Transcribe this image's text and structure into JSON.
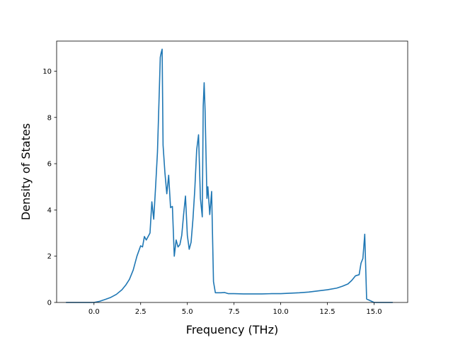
{
  "chart_data": {
    "type": "line",
    "xlabel": "Frequency (THz)",
    "ylabel": "Density of States",
    "xlim": [
      -2.0,
      16.8
    ],
    "ylim": [
      0,
      11.3
    ],
    "xticks": [
      {
        "value": 0.0,
        "label": "0.0"
      },
      {
        "value": 2.5,
        "label": "2.5"
      },
      {
        "value": 5.0,
        "label": "5.0"
      },
      {
        "value": 7.5,
        "label": "7.5"
      },
      {
        "value": 10.0,
        "label": "10.0"
      },
      {
        "value": 12.5,
        "label": "12.5"
      },
      {
        "value": 15.0,
        "label": "15.0"
      }
    ],
    "yticks": [
      {
        "value": 0,
        "label": "0"
      },
      {
        "value": 2,
        "label": "2"
      },
      {
        "value": 4,
        "label": "4"
      },
      {
        "value": 6,
        "label": "6"
      },
      {
        "value": 8,
        "label": "8"
      },
      {
        "value": 10,
        "label": "10"
      }
    ],
    "grid": false,
    "series": [
      {
        "color": "#1f77b4",
        "x": [
          -1.5,
          -1.0,
          -0.5,
          0.0,
          0.3,
          0.6,
          0.9,
          1.2,
          1.5,
          1.7,
          1.9,
          2.1,
          2.3,
          2.5,
          2.6,
          2.7,
          2.8,
          3.0,
          3.1,
          3.2,
          3.3,
          3.4,
          3.5,
          3.55,
          3.6,
          3.65,
          3.7,
          3.8,
          3.9,
          4.0,
          4.1,
          4.2,
          4.3,
          4.4,
          4.5,
          4.6,
          4.7,
          4.8,
          4.9,
          5.0,
          5.1,
          5.2,
          5.3,
          5.4,
          5.5,
          5.6,
          5.7,
          5.8,
          5.85,
          5.9,
          5.95,
          6.0,
          6.05,
          6.1,
          6.2,
          6.3,
          6.4,
          6.5,
          6.6,
          6.8,
          7.0,
          7.2,
          7.5,
          8.0,
          8.5,
          9.0,
          9.5,
          10.0,
          10.5,
          11.0,
          11.5,
          12.0,
          12.5,
          13.0,
          13.3,
          13.6,
          13.8,
          14.0,
          14.2,
          14.3,
          14.4,
          14.5,
          14.6,
          15.0,
          15.5,
          16.0
        ],
        "y": [
          0,
          0,
          0,
          0,
          0.05,
          0.13,
          0.22,
          0.35,
          0.55,
          0.75,
          1.0,
          1.4,
          2.0,
          2.45,
          2.4,
          2.85,
          2.7,
          3.0,
          4.35,
          3.6,
          5.0,
          6.5,
          9.2,
          10.6,
          10.8,
          10.95,
          6.8,
          5.6,
          4.7,
          5.5,
          4.1,
          4.15,
          2.0,
          2.7,
          2.4,
          2.5,
          2.9,
          3.8,
          4.6,
          2.9,
          2.3,
          2.6,
          3.6,
          4.9,
          6.6,
          7.25,
          4.5,
          3.7,
          8.5,
          9.5,
          8.3,
          6.4,
          4.5,
          5.0,
          3.8,
          4.8,
          0.9,
          0.42,
          0.42,
          0.42,
          0.43,
          0.38,
          0.38,
          0.37,
          0.37,
          0.37,
          0.38,
          0.38,
          0.4,
          0.42,
          0.45,
          0.5,
          0.55,
          0.62,
          0.7,
          0.8,
          0.95,
          1.15,
          1.2,
          1.7,
          1.9,
          2.95,
          0.15,
          0,
          0,
          0
        ]
      }
    ]
  }
}
